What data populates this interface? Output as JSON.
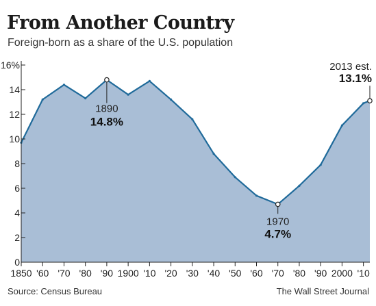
{
  "header": {
    "title": "From Another Country",
    "subtitle": "Foreign-born as a share of the U.S. population"
  },
  "footer": {
    "source": "Source: Census Bureau",
    "credit": "The Wall Street Journal"
  },
  "colors": {
    "area_fill": "#a9bed6",
    "line": "#1f6a9a",
    "axis": "#222222"
  },
  "chart_data": {
    "type": "area",
    "title": "From Another Country",
    "subtitle": "Foreign-born as a share of the U.S. population",
    "xlabel": "",
    "ylabel": "",
    "x": [
      1850,
      1860,
      1870,
      1880,
      1890,
      1900,
      1910,
      1920,
      1930,
      1940,
      1950,
      1960,
      1970,
      1980,
      1990,
      2000,
      2010,
      2013
    ],
    "series": [
      {
        "values": [
          9.7,
          13.2,
          14.4,
          13.3,
          14.8,
          13.6,
          14.7,
          13.2,
          11.6,
          8.8,
          6.9,
          5.4,
          4.7,
          6.2,
          7.9,
          11.1,
          12.9,
          13.1
        ]
      }
    ],
    "xlim": [
      1850,
      2013
    ],
    "ylim": [
      0,
      16
    ],
    "x_ticks": [
      {
        "value": 1850,
        "label": "1850"
      },
      {
        "value": 1860,
        "label": "'60"
      },
      {
        "value": 1870,
        "label": "'70"
      },
      {
        "value": 1880,
        "label": "'80"
      },
      {
        "value": 1890,
        "label": "'90"
      },
      {
        "value": 1900,
        "label": "1900"
      },
      {
        "value": 1910,
        "label": "'10"
      },
      {
        "value": 1920,
        "label": "'20"
      },
      {
        "value": 1930,
        "label": "'30"
      },
      {
        "value": 1940,
        "label": "'40"
      },
      {
        "value": 1950,
        "label": "'50"
      },
      {
        "value": 1960,
        "label": "'60"
      },
      {
        "value": 1970,
        "label": "'70"
      },
      {
        "value": 1980,
        "label": "'80"
      },
      {
        "value": 1990,
        "label": "'90"
      },
      {
        "value": 2000,
        "label": "2000"
      },
      {
        "value": 2010,
        "label": "'10"
      }
    ],
    "y_ticks": [
      {
        "value": 0,
        "label": "0"
      },
      {
        "value": 2,
        "label": "2"
      },
      {
        "value": 4,
        "label": "4"
      },
      {
        "value": 6,
        "label": "6"
      },
      {
        "value": 8,
        "label": "8"
      },
      {
        "value": 10,
        "label": "10"
      },
      {
        "value": 12,
        "label": "12"
      },
      {
        "value": 14,
        "label": "14"
      },
      {
        "value": 16,
        "label": "16%"
      }
    ],
    "grid": false,
    "annotations": [
      {
        "x": 1890,
        "y": 14.8,
        "label": "1890",
        "value": "14.8%"
      },
      {
        "x": 1970,
        "y": 4.7,
        "label": "1970",
        "value": "4.7%"
      },
      {
        "x": 2013,
        "y": 13.1,
        "label": "2013 est.",
        "value": "13.1%"
      }
    ]
  }
}
